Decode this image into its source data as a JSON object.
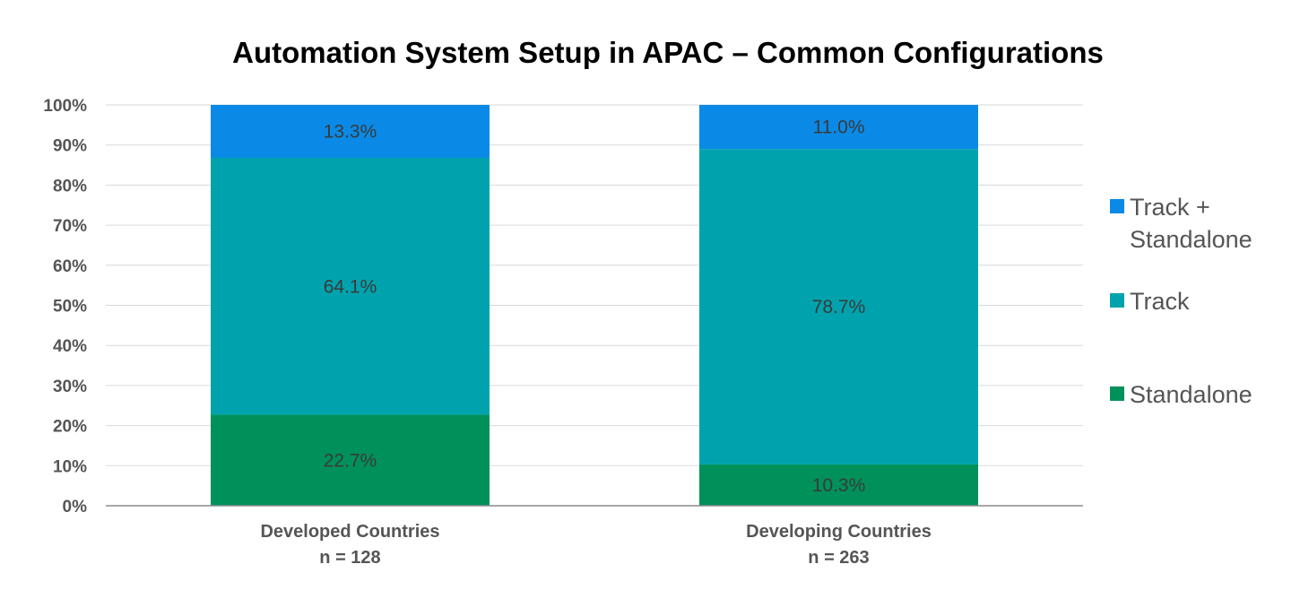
{
  "chart_data": {
    "type": "bar",
    "stacked": true,
    "title": "Automation System Setup in APAC – Common Configurations",
    "categories": [
      [
        "Developed Countries",
        "n = 128"
      ],
      [
        "Developing Countries",
        "n = 263"
      ]
    ],
    "series": [
      {
        "name": "Standalone",
        "values": [
          22.7,
          10.3
        ],
        "labels": [
          "22.7%",
          "10.3%"
        ],
        "color": "#00915a"
      },
      {
        "name": "Track",
        "values": [
          64.1,
          78.7
        ],
        "labels": [
          "64.1%",
          "78.7%"
        ],
        "color": "#00a3ad"
      },
      {
        "name": "Track + Standalone",
        "values": [
          13.3,
          11.0
        ],
        "labels": [
          "13.3%",
          "11.0%"
        ],
        "color": "#0a8ae6"
      }
    ],
    "ylim": [
      0,
      100
    ],
    "yticks": [
      "0%",
      "10%",
      "20%",
      "30%",
      "40%",
      "50%",
      "60%",
      "70%",
      "80%",
      "90%",
      "100%"
    ],
    "grid": true,
    "legend": {
      "position": "right",
      "entries": [
        [
          "Track +",
          "Standalone"
        ],
        [
          "Track"
        ],
        [
          "Standalone"
        ]
      ]
    }
  }
}
